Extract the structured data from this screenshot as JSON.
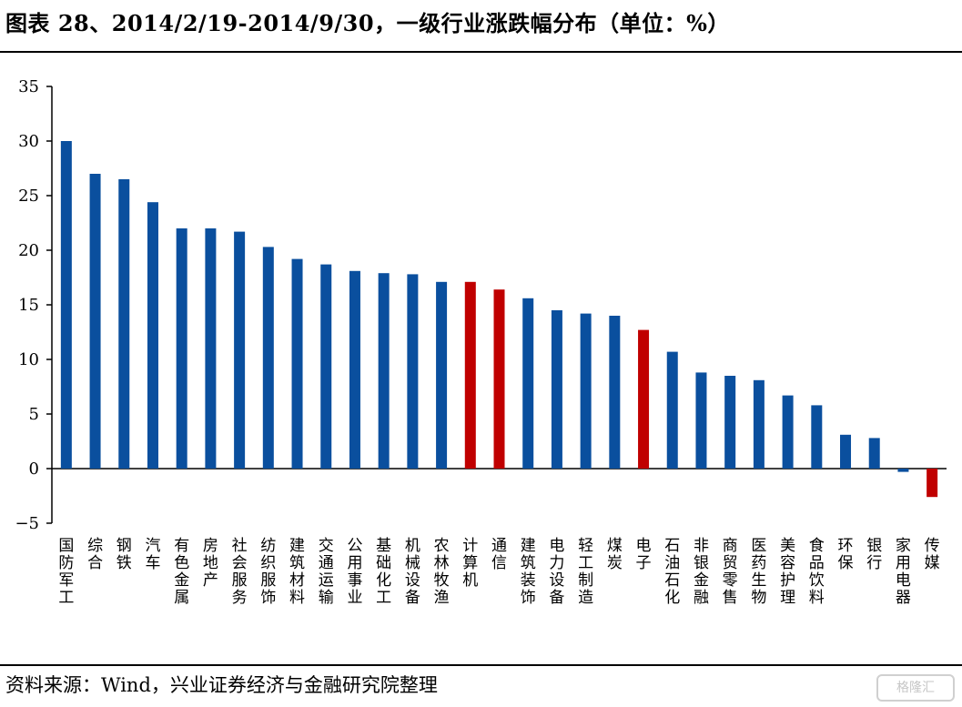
{
  "title": "图表 28、2014/2/19-2014/9/30，一级行业涨跌幅分布（单位：%）",
  "source": "资料来源：Wind，兴业证券经济与金融研究院整理",
  "watermark": "格隆汇",
  "colors": {
    "default": "#0a4f9e",
    "highlight": "#c00000",
    "axis": "#000000"
  },
  "chart_data": {
    "type": "bar",
    "categories": [
      "国防军工",
      "综合",
      "钢铁",
      "汽车",
      "有色金属",
      "房地产",
      "社会服务",
      "纺织服饰",
      "建筑材料",
      "交通运输",
      "公用事业",
      "基础化工",
      "机械设备",
      "农林牧渔",
      "计算机",
      "通信",
      "建筑装饰",
      "电力设备",
      "轻工制造",
      "煤炭",
      "电子",
      "石油石化",
      "非银金融",
      "商贸零售",
      "医药生物",
      "美容护理",
      "食品饮料",
      "环保",
      "银行",
      "家用电器",
      "传媒"
    ],
    "values": [
      30.0,
      27.0,
      26.5,
      24.4,
      22.0,
      22.0,
      21.7,
      20.3,
      19.2,
      18.7,
      18.1,
      17.9,
      17.8,
      17.1,
      17.1,
      16.4,
      15.6,
      14.5,
      14.2,
      14.0,
      12.7,
      10.7,
      8.8,
      8.5,
      8.1,
      6.7,
      5.8,
      3.1,
      2.8,
      -0.3,
      -2.6
    ],
    "highlight": [
      "计算机",
      "通信",
      "电子",
      "传媒"
    ],
    "ylim": [
      -5,
      35
    ],
    "yticks": [
      35,
      30,
      25,
      20,
      15,
      10,
      5,
      0,
      -5
    ],
    "xlabel": "",
    "ylabel": "",
    "grid": false,
    "legend": "none"
  }
}
